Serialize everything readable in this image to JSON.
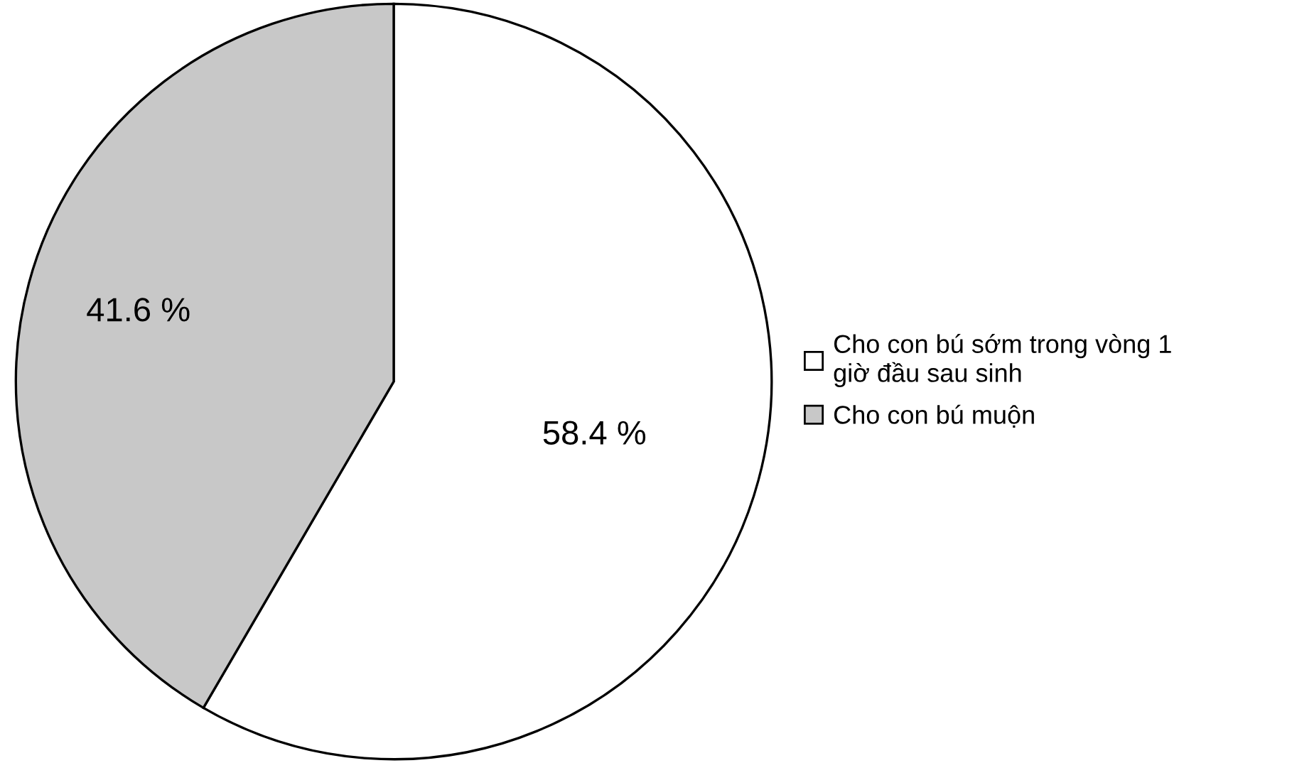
{
  "chart_data": {
    "type": "pie",
    "categories": [
      "Cho con bú sớm trong vòng 1 giờ đầu sau sinh",
      "Cho con bú muộn"
    ],
    "values": [
      58.4,
      41.6
    ],
    "colors": [
      "#ffffff",
      "#c8c8c8"
    ],
    "value_labels": [
      "58.4 %",
      "41.6 %"
    ],
    "legend": "right"
  }
}
